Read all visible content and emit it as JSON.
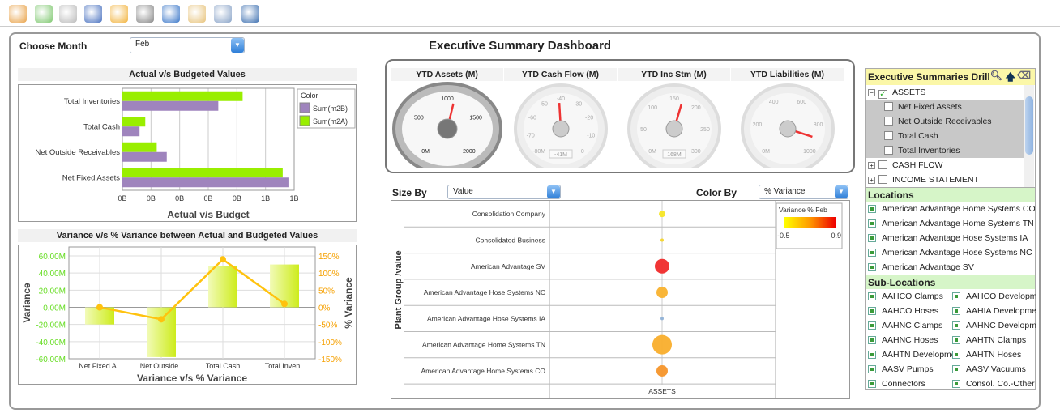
{
  "toolbar": {
    "icons": [
      "home-icon",
      "back-icon",
      "forward-icon",
      "edit-icon",
      "refresh-icon",
      "add-report-icon",
      "download-report-icon",
      "open-folder-icon",
      "print-icon",
      "save-icon"
    ]
  },
  "header": {
    "choose_month_label": "Choose Month",
    "month_value": "Feb",
    "title": "Executive Summary Dashboard"
  },
  "colors": {
    "m2B": "#9f84bd",
    "m2A": "#99ee00",
    "variance_bar": "#d4ef2a",
    "variance_line": "#ffc20e",
    "accent_green": "#d6f5c8"
  },
  "chart_data": [
    {
      "type": "bar",
      "title": "Actual v/s Budgeted Values",
      "xlabel": "Actual v/s Budget",
      "ylabel": "",
      "categories": [
        "Total Inventories",
        "Total Cash",
        "Net Outside Receivables",
        "Net Fixed Assets"
      ],
      "xticks": [
        "0B",
        "0B",
        "0B",
        "0B",
        "0B",
        "1B",
        "1B"
      ],
      "xlim": [
        0,
        1.2
      ],
      "legend_title": "Color",
      "series": [
        {
          "name": "Sum(m2B)",
          "values": [
            0.67,
            0.12,
            0.31,
            1.16
          ]
        },
        {
          "name": "Sum(m2A)",
          "values": [
            0.84,
            0.16,
            0.24,
            1.12
          ]
        }
      ]
    },
    {
      "type": "bar",
      "title": "Variance v/s % Variance between Actual and Budgeted Values",
      "xlabel": "Variance v/s % Variance",
      "ylabel": "Variance",
      "y2label": "% Variance",
      "categories": [
        "Net Fixed A..",
        "Net Outside..",
        "Total Cash",
        "Total Inven.."
      ],
      "yticks": [
        "60.00M",
        "40.00M",
        "20.00M",
        "0.00M",
        "-20.00M",
        "-40.00M",
        "-60.00M"
      ],
      "ylim": [
        -60,
        60
      ],
      "y2ticks": [
        "150%",
        "100%",
        "50%",
        "0%",
        "-50%",
        "-100%",
        "-150%"
      ],
      "y2lim": [
        -150,
        150
      ],
      "series": [
        {
          "type": "bar",
          "values": [
            -20,
            -58,
            48,
            50
          ]
        },
        {
          "type": "line",
          "values": [
            0,
            -35,
            140,
            10
          ]
        }
      ]
    },
    {
      "type": "scatter",
      "xlabel": "ASSETS",
      "ylabel": "Plant Group /value",
      "legend_title": "Variance % Feb",
      "color_range": [
        "-0.5",
        "0.9"
      ],
      "categories": [
        "Consolidation Company",
        "Consolidated Business",
        "American Advantage SV",
        "American Advantage Hose Systems NC",
        "American Advantage Hose Systems  IA",
        "American Advantage Home Systems TN",
        "American Advantage Home Systems CO"
      ],
      "size_values": [
        4,
        2,
        9,
        7,
        2,
        12,
        7
      ],
      "colors": [
        "#f7e625",
        "#f5d52a",
        "#f02a2a",
        "#f9b22e",
        "#8fb1d6",
        "#f9ae2c",
        "#f5952a"
      ]
    }
  ],
  "gauges": [
    {
      "title": "YTD Assets (M)",
      "ticks": [
        "0M",
        "500",
        "1000",
        "1500",
        "2000"
      ],
      "min": 0,
      "max": 2000,
      "value": 1100,
      "readout": ""
    },
    {
      "title": "YTD Cash Flow (M)",
      "ticks": [
        "-80M",
        "-70",
        "-60",
        "-50",
        "-40",
        "-30",
        "-20",
        "-10",
        "0"
      ],
      "min": -80,
      "max": 0,
      "value": -41,
      "readout": "-41M"
    },
    {
      "title": "YTD Inc Stm (M)",
      "ticks": [
        "0M",
        "50",
        "100",
        "150",
        "200",
        "250",
        "300"
      ],
      "min": 0,
      "max": 300,
      "value": 168,
      "readout": "168M"
    },
    {
      "title": "YTD Liabilities (M)",
      "ticks": [
        "0M",
        "200",
        "400",
        "600",
        "800",
        "1000"
      ],
      "min": 0,
      "max": 1000,
      "value": 900,
      "readout": ""
    }
  ],
  "bubble_controls": {
    "size_by_label": "Size By",
    "size_by_value": "Value",
    "color_by_label": "Color By",
    "color_by_value": "% Variance"
  },
  "drill": {
    "title": "Executive Summaries Drill",
    "tree": [
      {
        "label": "ASSETS",
        "expanded": true,
        "checked": true,
        "children": [
          "Net Fixed Assets",
          "Net Outside Receivables",
          "Total Cash",
          "Total Inventories"
        ]
      },
      {
        "label": "CASH FLOW"
      },
      {
        "label": "INCOME STATEMENT"
      }
    ]
  },
  "locations": {
    "title": "Locations",
    "items": [
      "American Advantage Home Systems CO",
      "American Advantage Home Systems TN",
      "American Advantage Hose Systems  IA",
      "American Advantage Hose Systems NC",
      "American Advantage SV"
    ]
  },
  "sublocations": {
    "title": "Sub-Locations",
    "items": [
      "AAHCO Clamps",
      "AAHCO Development",
      "AAHCO Hoses",
      "AAHIA Development",
      "AAHNC Clamps",
      "AAHNC Development",
      "AAHNC Hoses",
      "AAHTN Clamps",
      "AAHTN Development",
      "AAHTN Hoses",
      "AASV Pumps",
      "AASV Vacuums",
      "Connectors",
      "Consol. Co.-Other"
    ]
  }
}
